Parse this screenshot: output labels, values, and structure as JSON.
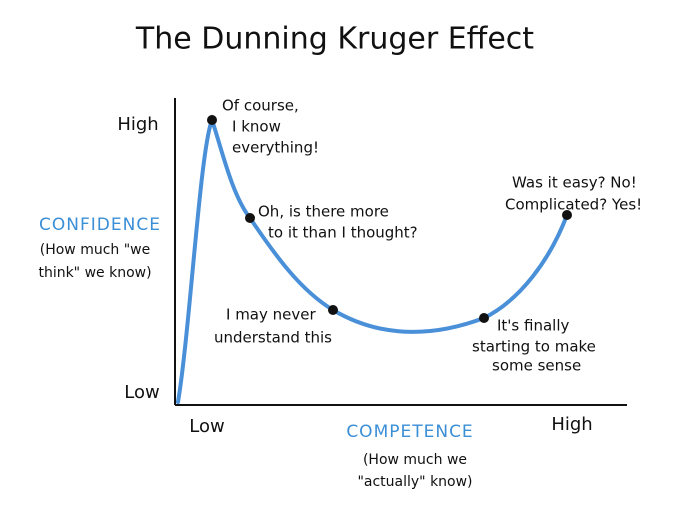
{
  "title": "The Dunning Kruger Effect",
  "y_axis": {
    "high": "High",
    "low": "Low",
    "label": "CONFIDENCE",
    "note": [
      "(How much \"we",
      "think\" we know)"
    ]
  },
  "x_axis": {
    "low": "Low",
    "high": "High",
    "label": "COMPETENCE",
    "note": [
      "(How much we",
      "\"actually\" know)"
    ]
  },
  "annotations": [
    {
      "lines": [
        "Of course,",
        "I know",
        "everything!"
      ]
    },
    {
      "lines": [
        "Oh, is there more",
        "to it than I thought?"
      ]
    },
    {
      "lines": [
        "I may never",
        "understand this"
      ]
    },
    {
      "lines": [
        "It's finally",
        "starting to make",
        "some sense"
      ]
    },
    {
      "lines": [
        "Was it easy? No!",
        "Complicated? Yes!"
      ]
    }
  ]
}
